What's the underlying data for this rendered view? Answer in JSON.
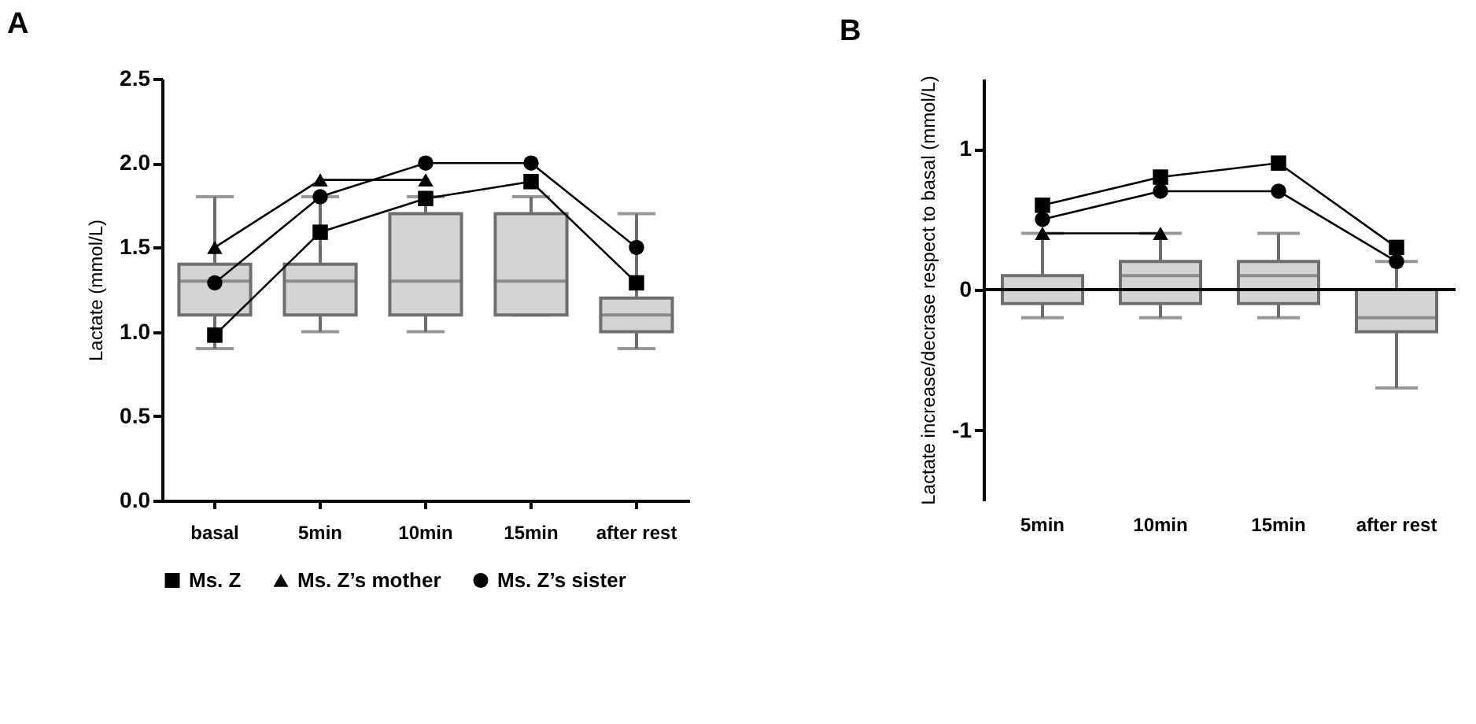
{
  "chart_data": [
    {
      "type": "box",
      "title": "A",
      "ylabel": "Lactate (mmol/L)",
      "categories": [
        "basal",
        "5min",
        "10min",
        "15min",
        "after rest"
      ],
      "ylim": [
        0,
        2.5
      ],
      "yticks": [
        {
          "value": 0,
          "label": "0.0"
        },
        0.5,
        {
          "value": 1,
          "label": "1.0"
        },
        1.5,
        {
          "value": 2,
          "label": "2.0"
        },
        2.5
      ],
      "legend": "bottom",
      "series": [
        {
          "type": "box",
          "color": "#d4d4d4",
          "boxes": [
            {
              "low": 0.9,
              "q1": 1.1,
              "median": 1.3,
              "q3": 1.4,
              "high": 1.8
            },
            {
              "low": 1.0,
              "q1": 1.1,
              "median": 1.3,
              "q3": 1.4,
              "high": 1.8
            },
            {
              "low": 1.0,
              "q1": 1.1,
              "median": 1.3,
              "q3": 1.7,
              "high": 1.8
            },
            {
              "low": 1.1,
              "q1": 1.1,
              "median": 1.3,
              "q3": 1.7,
              "high": 1.8
            },
            {
              "low": 0.9,
              "q1": 1.0,
              "median": 1.1,
              "q3": 1.2,
              "high": 1.7
            }
          ]
        },
        {
          "type": "line",
          "name": "Ms. Z",
          "color": "#000000",
          "marker": "square",
          "values": [
            0.98,
            1.59,
            1.79,
            1.89,
            1.29
          ]
        },
        {
          "type": "line",
          "name": "Ms. Z’s mother",
          "color": "#000000",
          "marker": "triangle",
          "values": [
            1.5,
            1.9,
            1.9,
            null,
            null
          ]
        },
        {
          "type": "line",
          "name": "Ms. Z’s sister",
          "color": "#000000",
          "marker": "circle",
          "values": [
            1.29,
            1.8,
            2.0,
            2.0,
            1.5
          ]
        }
      ]
    },
    {
      "type": "box",
      "title": "B",
      "ylabel": "Lactate increase/decrase respect to basal (mmol/L)",
      "categories": [
        "5min",
        "10min",
        "15min",
        "after rest"
      ],
      "ylim": [
        -1.5,
        1.5
      ],
      "yticks": [
        -1,
        0,
        1
      ],
      "legend": "bottom",
      "ref_lines": [
        {
          "axis": "y",
          "value": 0,
          "color": "#000000"
        }
      ],
      "series": [
        {
          "type": "box",
          "color": "#d4d4d4",
          "boxes": [
            {
              "low": -0.2,
              "q1": -0.1,
              "median": 0,
              "q3": 0.1,
              "high": 0.4
            },
            {
              "low": -0.2,
              "q1": -0.1,
              "median": 0.1,
              "q3": 0.2,
              "high": 0.4
            },
            {
              "low": -0.2,
              "q1": -0.1,
              "median": 0.1,
              "q3": 0.2,
              "high": 0.4
            },
            {
              "low": -0.7,
              "q1": -0.3,
              "median": -0.2,
              "q3": 0,
              "high": 0.2
            }
          ]
        },
        {
          "type": "line",
          "name": "Ms. Z",
          "color": "#000000",
          "marker": "square",
          "values": [
            0.6,
            0.8,
            0.9,
            0.3
          ]
        },
        {
          "type": "line",
          "name": "Ms. Z’s mother",
          "color": "#000000",
          "marker": "triangle",
          "values": [
            0.4,
            0.4,
            null,
            null
          ]
        },
        {
          "type": "line",
          "name": "Ms. Z’s sister",
          "color": "#000000",
          "marker": "circle",
          "values": [
            0.5,
            0.7,
            0.7,
            0.2
          ]
        }
      ]
    }
  ]
}
